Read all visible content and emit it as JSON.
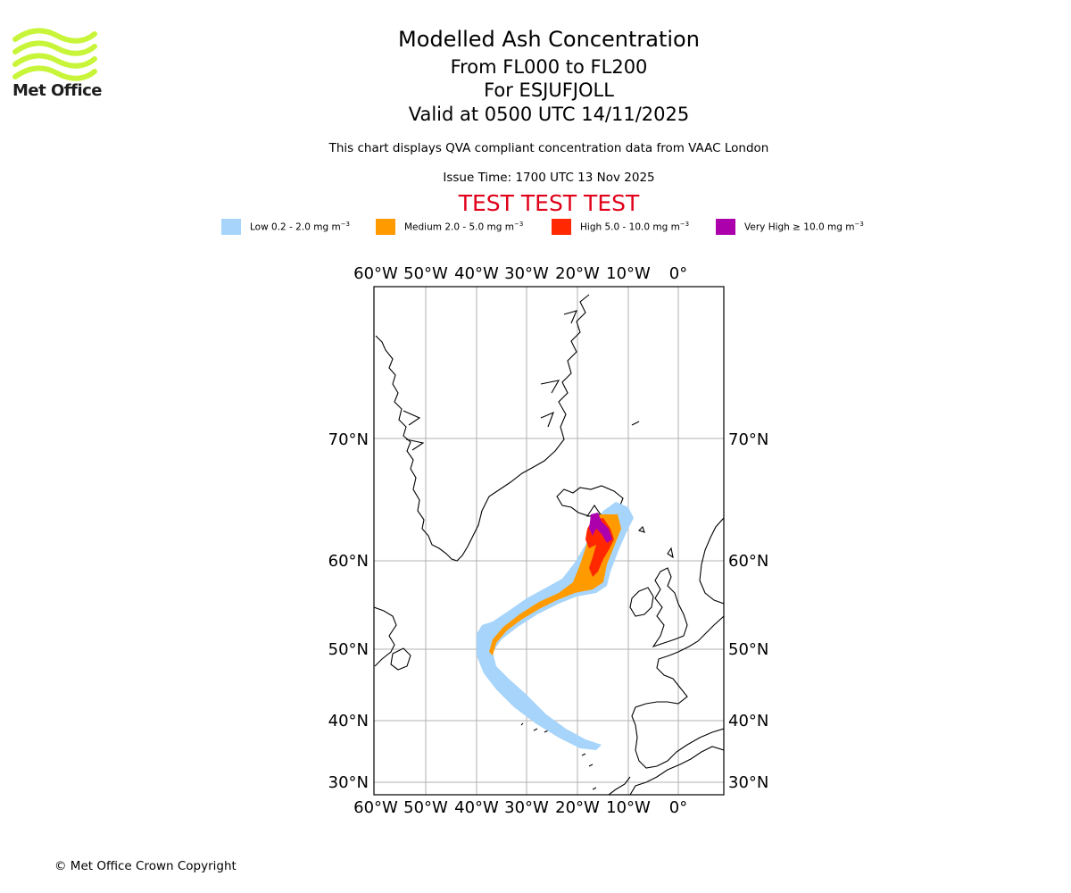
{
  "header": {
    "title": "Modelled Ash Concentration",
    "levels": "From FL000 to FL200",
    "volcano": "For ESJUFJOLL",
    "valid": "Valid at 0500 UTC 14/11/2025",
    "description": "This chart displays QVA compliant concentration data from VAAC London",
    "issue_time": "Issue Time: 1700 UTC 13 Nov 2025",
    "test_banner": "TEST TEST TEST"
  },
  "logo": {
    "text": "Met Office",
    "color": "#c8f53a"
  },
  "legend": [
    {
      "label": "Low 0.2 - 2.0 mg m",
      "exp": "−3",
      "prefix": "",
      "color": "#a6d4fa"
    },
    {
      "label": "Medium 2.0 - 5.0 mg m",
      "exp": "−3",
      "prefix": "",
      "color": "#ff9b00"
    },
    {
      "label": "High 5.0 - 10.0 mg m",
      "exp": "−3",
      "prefix": "",
      "color": "#ff2800"
    },
    {
      "label": "Very High  ≥  10.0 mg m",
      "exp": "−3",
      "prefix": "",
      "color": "#ad00ad"
    }
  ],
  "map": {
    "lon_labels": [
      "60°W",
      "50°W",
      "40°W",
      "30°W",
      "20°W",
      "10°W",
      "0°"
    ],
    "lat_labels": [
      "70°N",
      "60°N",
      "50°N",
      "40°N",
      "30°N"
    ],
    "grid_color": "#b0b0b0",
    "land_outline_color": "#000000"
  },
  "footer": {
    "copyright": "© Met Office Crown Copyright"
  }
}
